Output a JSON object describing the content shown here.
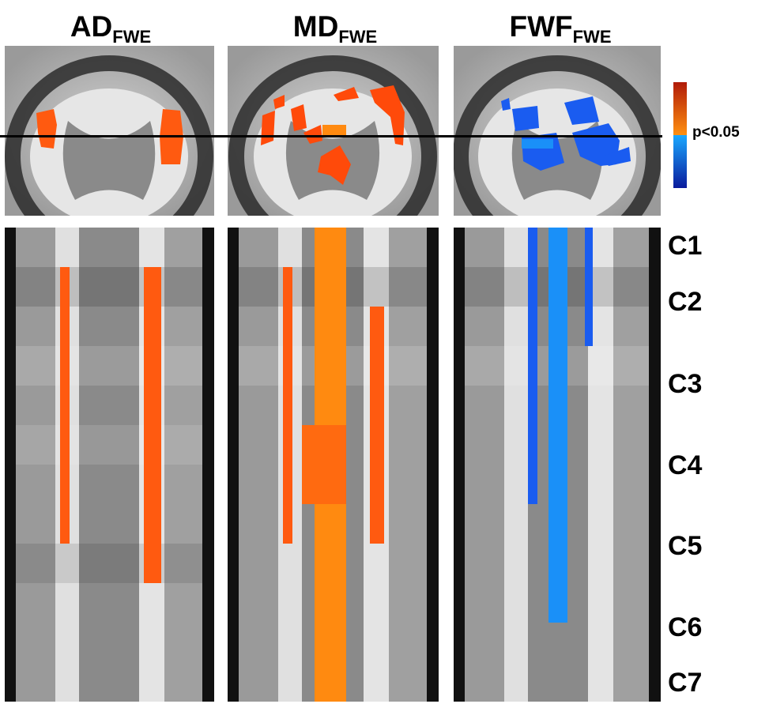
{
  "titles": [
    {
      "main": "AD",
      "sub": "FWE"
    },
    {
      "main": "MD",
      "sub": "FWE"
    },
    {
      "main": "FWF",
      "sub": "FWE"
    }
  ],
  "colorbar": {
    "label": "p<0.05",
    "warm_top": "#b01a08",
    "warm_mid": "#ff7f10",
    "cool_mid": "#1aa0ff",
    "cool_bottom": "#0a1a9c"
  },
  "levels": [
    "C1",
    "C2",
    "C3",
    "C4",
    "C5",
    "C6",
    "C7"
  ],
  "colors": {
    "warm": "#ff5a10",
    "warm_light": "#ff8a10",
    "cool": "#1a5cf0",
    "cool_light": "#1a90f8"
  }
}
